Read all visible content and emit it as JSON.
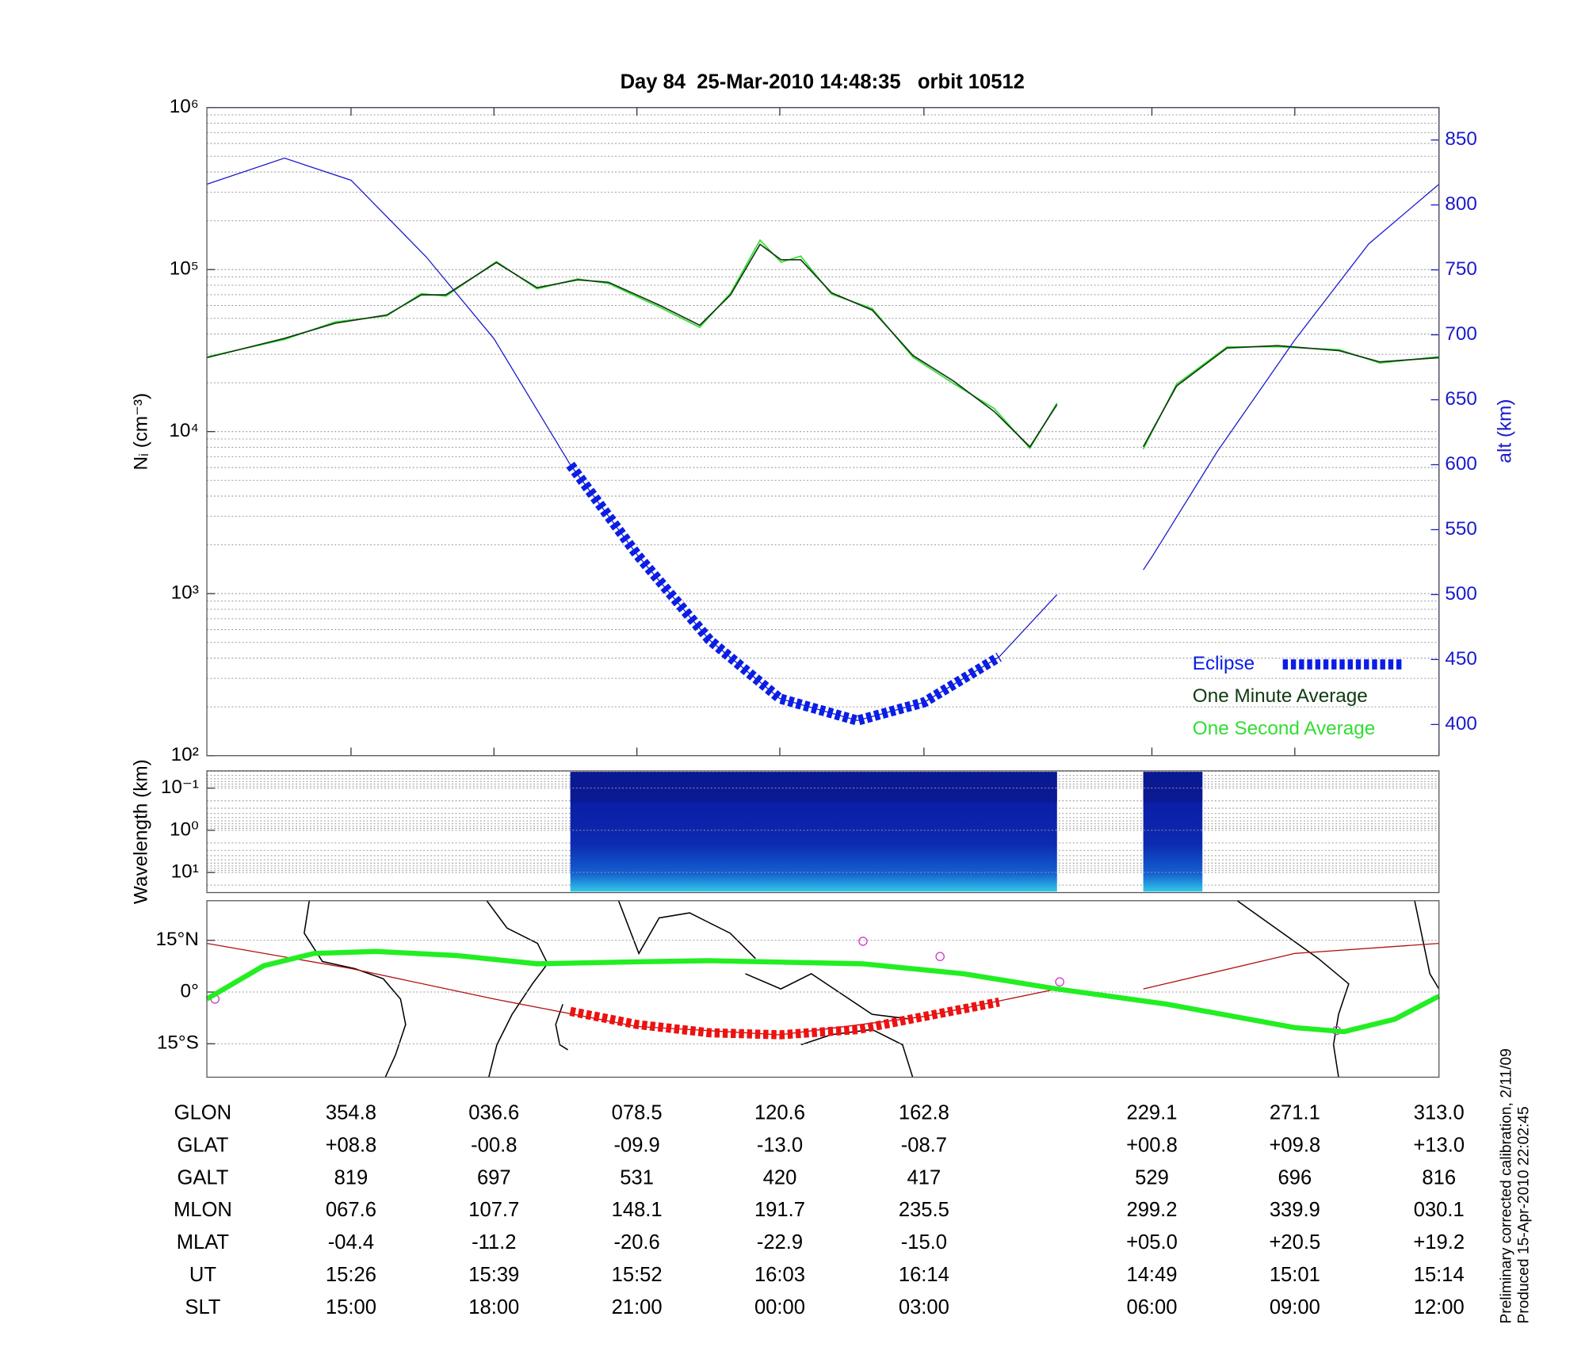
{
  "chart_data": [
    {
      "type": "line",
      "title": "Day 84  25-Mar-2010 14:48:35   orbit 10512",
      "y_label": "Nᵢ (cm⁻³)",
      "y2_label": "alt (km)",
      "log_y": true,
      "yminor": true,
      "legend": "lower right",
      "xlim": [
        0,
        100
      ],
      "xticks": [
        11.7,
        23.3,
        34.9,
        46.5,
        58.2,
        76.7,
        88.3,
        100
      ],
      "ylim": [
        100,
        1000000
      ],
      "yticks": [
        {
          "value": 100,
          "label": "10²"
        },
        {
          "value": 1000,
          "label": "10³"
        },
        {
          "value": 10000,
          "label": "10⁴"
        },
        {
          "value": 100000,
          "label": "10⁵"
        },
        {
          "value": 1000000,
          "label": "10⁶"
        }
      ],
      "y2lim": [
        376,
        875
      ],
      "y2ticks": [
        400,
        450,
        500,
        550,
        600,
        650,
        700,
        750,
        800,
        850
      ],
      "x": [
        0,
        6.3,
        10.4,
        14.6,
        17.4,
        19.4,
        23.5,
        26.8,
        30.1,
        32.6,
        36.7,
        40.0,
        42.5,
        44.9,
        46.6,
        48.2,
        50.7,
        54.0,
        57.3,
        60.6,
        63.9,
        66.8,
        69.0,
        72.5,
        76.0,
        78.7,
        82.8,
        86.9,
        91.9,
        95.2,
        100
      ],
      "series": [
        {
          "name": "One Second Average",
          "color": "#33dd33",
          "values": [
            28900,
            37000,
            47500,
            51800,
            71000,
            68500,
            112000,
            76000,
            87500,
            82000,
            58800,
            44000,
            71500,
            152000,
            111000,
            121000,
            70500,
            57500,
            28800,
            19800,
            13900,
            7900,
            15000,
            null,
            7800,
            19600,
            33300,
            33400,
            32000,
            26500,
            29000
          ]
        },
        {
          "name": "One Minute Average",
          "color": "#103a10",
          "values": [
            28600,
            37600,
            46600,
            52400,
            69800,
            69800,
            110600,
            77300,
            86400,
            83500,
            60400,
            45300,
            69800,
            143000,
            115000,
            115000,
            71800,
            56200,
            29500,
            20500,
            13300,
            8060,
            14700,
            null,
            8060,
            19100,
            32800,
            33900,
            31600,
            26900,
            28600
          ]
        },
        {
          "color": "#1a1acc",
          "axis": "y2",
          "x": [
            0,
            6.3,
            11.7,
            17.8,
            23.3,
            29.5,
            34.9,
            40.8,
            46.5,
            52.8,
            58.2,
            64.3,
            69.0,
            72.5,
            76.0,
            76.7,
            82.0,
            88.3,
            94.3,
            100
          ],
          "values": [
            816,
            836,
            819,
            760,
            697,
            600,
            531,
            465,
            420,
            403,
            417,
            452,
            500,
            null,
            519,
            529,
            610,
            696,
            770,
            816
          ]
        },
        {
          "name": "Eclipse",
          "color": "#0a1ee6",
          "axis": "y2",
          "dashed": true,
          "x": [
            29.5,
            34.9,
            40.8,
            46.5,
            52.8,
            58.2,
            64.3
          ],
          "values": [
            600,
            531,
            465,
            420,
            403,
            417,
            452
          ]
        }
      ]
    },
    {
      "type": "heatmap",
      "y_label": "Wavelength (km)",
      "log_y": true,
      "yinvert": true,
      "yminor": true,
      "xlim": [
        0,
        100
      ],
      "ylim": [
        0.039,
        30
      ],
      "yticks": [
        {
          "value": 0.1,
          "label": "10⁻¹"
        },
        {
          "value": 1,
          "label": "10⁰"
        },
        {
          "value": 10,
          "label": "10¹"
        }
      ],
      "segments": [
        [
          29.5,
          69.0
        ],
        [
          76.0,
          80.8
        ]
      ],
      "color": "#0a1a8c"
    },
    {
      "type": "map",
      "xlim": [
        0,
        100
      ],
      "ylim": [
        -24.7,
        26.5
      ],
      "yticks": [
        {
          "value": 15,
          "label": "15°N"
        },
        {
          "value": 0,
          "label": "0°"
        },
        {
          "value": -15,
          "label": "15°S"
        }
      ],
      "series": [
        {
          "color": "#b01010",
          "width": 1,
          "x": [
            0,
            11.7,
            23.3,
            34.9,
            46.5,
            58.2,
            69.0,
            72.5,
            76.0,
            88.3,
            100
          ],
          "values": [
            14.1,
            6.8,
            -2,
            -10,
            -12.4,
            -7.1,
            0.9,
            null,
            0.9,
            11.2,
            14.1
          ]
        },
        {
          "color": "#22ee22",
          "width": 5,
          "x": [
            0,
            4.6,
            8.7,
            13.7,
            20.2,
            26.8,
            35.1,
            40.8,
            53.2,
            61.4,
            69.0,
            77.9,
            88.3,
            92.3,
            96.4,
            100
          ],
          "values": [
            -2,
            7.6,
            11.2,
            11.8,
            10.6,
            8.2,
            8.8,
            9.1,
            8.2,
            5.3,
            0.9,
            -3.5,
            -10.3,
            -11.5,
            -7.9,
            -1.2
          ]
        },
        {
          "color": "#ee1111",
          "width": 9,
          "dashed": true,
          "x": [
            29.5,
            34.9,
            40.8,
            46.5,
            52.8,
            58.2,
            64.3
          ],
          "values": [
            -5.6,
            -9.4,
            -11.8,
            -12.4,
            -10.9,
            -7.1,
            -2.9
          ]
        }
      ]
    }
  ],
  "table": {
    "rows": [
      [
        "GLON",
        "354.8",
        "036.6",
        "078.5",
        "120.6",
        "162.8",
        "229.1",
        "271.1",
        "313.0"
      ],
      [
        "GLAT",
        "+08.8",
        "-00.8",
        "-09.9",
        "-13.0",
        "-08.7",
        "+00.8",
        "+09.8",
        "+13.0"
      ],
      [
        "GALT",
        "819",
        "697",
        "531",
        "420",
        "417",
        "529",
        "696",
        "816"
      ],
      [
        "MLON",
        "067.6",
        "107.7",
        "148.1",
        "191.7",
        "235.5",
        "299.2",
        "339.9",
        "030.1"
      ],
      [
        "MLAT",
        "-04.4",
        "-11.2",
        "-20.6",
        "-22.9",
        "-15.0",
        "+05.0",
        "+20.5",
        "+19.2"
      ],
      [
        "UT",
        "15:26",
        "15:39",
        "15:52",
        "16:03",
        "16:14",
        "14:49",
        "15:01",
        "15:14"
      ],
      [
        "SLT",
        "15:00",
        "18:00",
        "21:00",
        "00:00",
        "03:00",
        "06:00",
        "09:00",
        "12:00"
      ]
    ]
  },
  "notes": [
    "Preliminary corrected calibration, 2/11/09",
    "Produced 15-Apr-2010 22:02:45"
  ]
}
